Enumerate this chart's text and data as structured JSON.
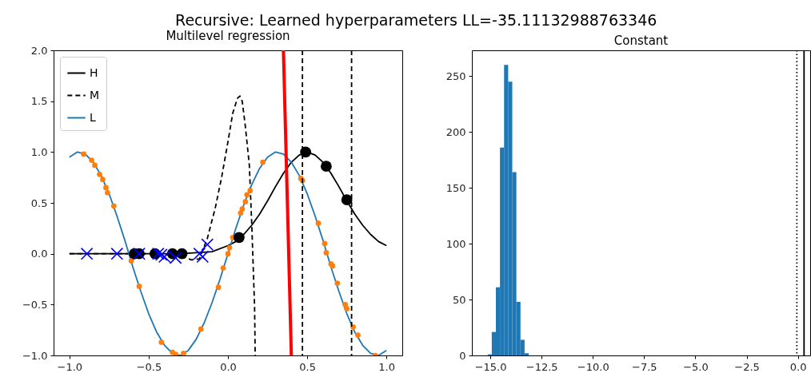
{
  "chart_data": [
    {
      "type": "line",
      "title": "Recursive: Learned hyperparameters LL=-35.11132988763346",
      "subtitle": "Multilevel regression",
      "xlim": [
        -1.1,
        1.1
      ],
      "ylim": [
        -1.0,
        2.0
      ],
      "xticks": [
        {
          "value": -1.0,
          "label": "−1.0"
        },
        {
          "value": -0.5,
          "label": "−0.5"
        },
        {
          "value": 0.0,
          "label": "0.0"
        },
        {
          "value": 0.5,
          "label": "0.5"
        },
        {
          "value": 1.0,
          "label": "1.0"
        }
      ],
      "yticks": [
        {
          "value": -1.0,
          "label": "−1.0"
        },
        {
          "value": -0.5,
          "label": "−0.5"
        },
        {
          "value": 0.0,
          "label": "0.0"
        },
        {
          "value": 0.5,
          "label": "0.5"
        },
        {
          "value": 1.0,
          "label": "1.0"
        },
        {
          "value": 1.5,
          "label": "1.5"
        },
        {
          "value": 2.0,
          "label": "2.0"
        }
      ],
      "legend": "top left",
      "series": [
        {
          "name": "H",
          "type": "line",
          "color": "#000000",
          "line_style": "solid",
          "x": [
            -1,
            -0.5,
            -0.3,
            -0.2,
            -0.1,
            0,
            0.05,
            0.1,
            0.15,
            0.2,
            0.25,
            0.3,
            0.35,
            0.4,
            0.45,
            0.5,
            0.55,
            0.6,
            0.65,
            0.7,
            0.75,
            0.8,
            0.85,
            0.9,
            0.95,
            1.0
          ],
          "values": [
            0,
            0,
            0,
            0.01,
            0.02,
            0.08,
            0.12,
            0.19,
            0.28,
            0.39,
            0.52,
            0.66,
            0.79,
            0.9,
            0.97,
            1.0,
            0.97,
            0.9,
            0.79,
            0.66,
            0.52,
            0.39,
            0.28,
            0.19,
            0.12,
            0.08
          ]
        },
        {
          "name": "M",
          "type": "line",
          "color": "#000000",
          "line_style": "dashed",
          "x": [
            -1,
            -0.5,
            -0.3,
            -0.23,
            -0.18,
            -0.13,
            -0.08,
            -0.04,
            0,
            0.03,
            0.06,
            0.076,
            0.09,
            0.11,
            0.135,
            0.15,
            0.168,
            0.172
          ],
          "values": [
            0,
            0,
            -0.02,
            -0.06,
            -0.05,
            0.15,
            0.45,
            0.75,
            1.1,
            1.38,
            1.53,
            1.55,
            1.5,
            1.25,
            0.87,
            0.3,
            -0.52,
            -1.0
          ]
        },
        {
          "name": "L",
          "type": "line",
          "color": "#1f77b4",
          "line_style": "solid",
          "x": [
            -1,
            -0.95,
            -0.9,
            -0.85,
            -0.8,
            -0.75,
            -0.7,
            -0.65,
            -0.6,
            -0.55,
            -0.5,
            -0.45,
            -0.4,
            -0.35,
            -0.3,
            -0.25,
            -0.2,
            -0.15,
            -0.1,
            -0.05,
            0,
            0.05,
            0.1,
            0.15,
            0.2,
            0.25,
            0.3,
            0.35,
            0.4,
            0.45,
            0.5,
            0.55,
            0.6,
            0.65,
            0.7,
            0.75,
            0.8,
            0.85,
            0.9,
            0.95,
            1.0
          ],
          "values": [
            0.95,
            1.0,
            0.98,
            0.9,
            0.77,
            0.59,
            0.37,
            0.13,
            -0.13,
            -0.37,
            -0.59,
            -0.77,
            -0.9,
            -0.98,
            -1.0,
            -0.95,
            -0.84,
            -0.68,
            -0.48,
            -0.25,
            0,
            0.25,
            0.48,
            0.68,
            0.84,
            0.95,
            1.0,
            0.98,
            0.9,
            0.77,
            0.59,
            0.37,
            0.13,
            -0.13,
            -0.37,
            -0.59,
            -0.77,
            -0.9,
            -0.98,
            -1.0,
            -0.95
          ]
        },
        {
          "type": "line",
          "color": "#ff0000",
          "line_style": "solid",
          "x": [
            0.35,
            0.4
          ],
          "values": [
            2.0,
            -1.0
          ]
        },
        {
          "type": "scatter",
          "color": "#ff7f0e",
          "marker": "circle",
          "x": [
            -0.91,
            -0.86,
            -0.84,
            -0.81,
            -0.79,
            -0.77,
            -0.76,
            -0.72,
            -0.61,
            -0.56,
            -0.42,
            -0.35,
            -0.33,
            -0.28,
            -0.17,
            -0.06,
            -0.03,
            0.0,
            0.01,
            0.03,
            0.08,
            0.09,
            0.11,
            0.12,
            0.14,
            0.22,
            0.46,
            0.47,
            0.57,
            0.61,
            0.62,
            0.65,
            0.66,
            0.69,
            0.74,
            0.75,
            0.79,
            0.82,
            0.93
          ],
          "values": [
            0.98,
            0.92,
            0.87,
            0.78,
            0.73,
            0.65,
            0.6,
            0.47,
            -0.07,
            -0.32,
            -0.87,
            -0.97,
            -0.99,
            -0.98,
            -0.74,
            -0.33,
            -0.14,
            0.0,
            0.06,
            0.16,
            0.4,
            0.44,
            0.51,
            0.58,
            0.62,
            0.9,
            0.74,
            0.72,
            0.3,
            0.1,
            0.01,
            -0.1,
            -0.12,
            -0.29,
            -0.5,
            -0.54,
            -0.72,
            -0.8,
            -1.0
          ]
        },
        {
          "type": "scatter",
          "color": "#000000",
          "marker": "circle",
          "x": [
            -0.59,
            -0.56,
            -0.46,
            -0.35,
            -0.29,
            0.07,
            0.49,
            0.62,
            0.75
          ],
          "values": [
            0,
            0,
            0,
            0,
            0,
            0.16,
            1.0,
            0.86,
            0.53
          ]
        },
        {
          "type": "scatter",
          "color": "#0000ff",
          "marker": "cross",
          "x": [
            -0.89,
            -0.7,
            -0.56,
            -0.44,
            -0.42,
            -0.4,
            -0.33,
            -0.18,
            -0.16,
            -0.13
          ],
          "values": [
            0,
            0,
            0,
            0,
            -0.01,
            -0.03,
            -0.04,
            0,
            -0.03,
            0.09
          ]
        }
      ],
      "ref_lines": [
        {
          "axis": "x",
          "value": 0.47,
          "color": "#000000",
          "line_style": "dashed"
        },
        {
          "axis": "x",
          "value": 0.78,
          "color": "#000000",
          "line_style": "dashed"
        }
      ]
    },
    {
      "type": "histogram",
      "title": "Constant",
      "color": "#1f77b4",
      "bins": [
        -15.13,
        -14.93,
        -14.73,
        -14.53,
        -14.33,
        -14.13,
        -13.93,
        -13.73,
        -13.53,
        -13.33,
        -13.13
      ],
      "values": [
        1,
        21,
        61,
        186,
        260,
        245,
        164,
        48,
        14,
        2
      ],
      "xlim": [
        -15.9,
        0.6
      ],
      "ylim": [
        0,
        273
      ],
      "xticks": [
        {
          "value": -15.0,
          "label": "−15.0"
        },
        {
          "value": -12.5,
          "label": "−12.5"
        },
        {
          "value": -10.0,
          "label": "−10.0"
        },
        {
          "value": -7.5,
          "label": "−7.5"
        },
        {
          "value": -5.0,
          "label": "−5.0"
        },
        {
          "value": -2.5,
          "label": "−2.5"
        },
        {
          "value": 0.0,
          "label": "0.0"
        }
      ],
      "yticks": [
        0,
        50,
        100,
        150,
        200,
        250
      ],
      "ref_lines": [
        {
          "axis": "x",
          "value": -0.05,
          "color": "#000000",
          "line_style": "dotted"
        },
        {
          "axis": "x",
          "value": 0.3,
          "color": "#000000",
          "line_style": "solid"
        }
      ]
    }
  ]
}
